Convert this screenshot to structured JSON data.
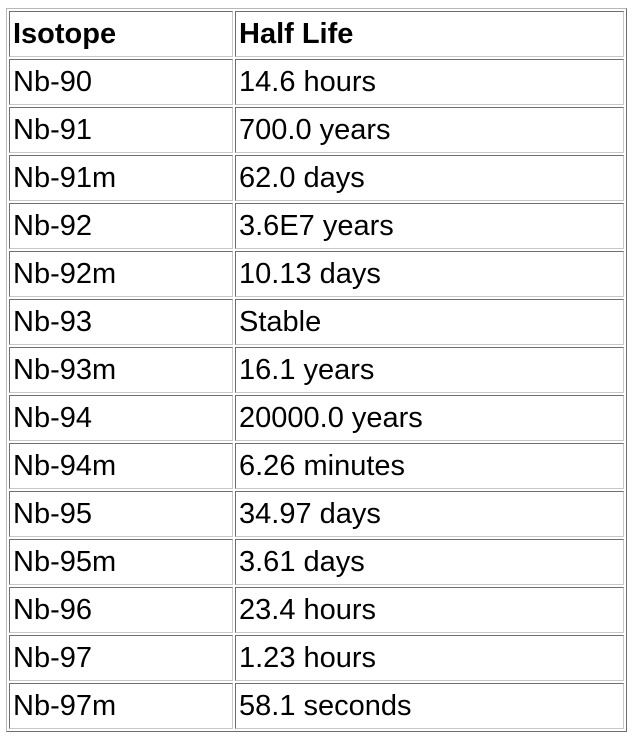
{
  "table": {
    "headers": [
      "Isotope",
      "Half Life"
    ],
    "rows": [
      [
        "Nb-90",
        "14.6 hours"
      ],
      [
        "Nb-91",
        "700.0 years"
      ],
      [
        "Nb-91m",
        "62.0 days"
      ],
      [
        "Nb-92",
        "3.6E7 years"
      ],
      [
        "Nb-92m",
        "10.13 days"
      ],
      [
        "Nb-93",
        "Stable"
      ],
      [
        "Nb-93m",
        "16.1 years"
      ],
      [
        "Nb-94",
        "20000.0 years"
      ],
      [
        "Nb-94m",
        "6.26 minutes"
      ],
      [
        "Nb-95",
        "34.97 days"
      ],
      [
        "Nb-95m",
        "3.61 days"
      ],
      [
        "Nb-96",
        "23.4 hours"
      ],
      [
        "Nb-97",
        "1.23 hours"
      ],
      [
        "Nb-97m",
        "58.1 seconds"
      ]
    ]
  }
}
